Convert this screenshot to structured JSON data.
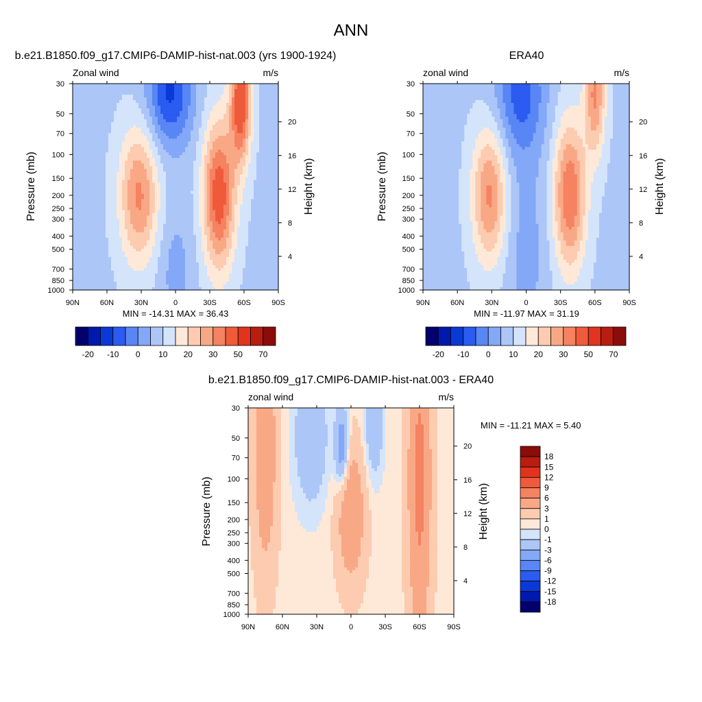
{
  "page_title": "ANN",
  "colors": {
    "scale_abs": [
      "#03006e",
      "#0019ad",
      "#0a3ad6",
      "#2b5bf0",
      "#5886f5",
      "#82a8f7",
      "#acc6f8",
      "#d4e4fb",
      "#fee9d8",
      "#fccbb0",
      "#f9a886",
      "#f58260",
      "#ef5a3a",
      "#e1331d",
      "#b81d10",
      "#8a0d0a"
    ],
    "scale_diff": [
      "#03006e",
      "#0019ad",
      "#0a3ad6",
      "#2b5bf0",
      "#5886f5",
      "#82a8f7",
      "#acc6f8",
      "#d4e4fb",
      "#fee9d8",
      "#fccbb0",
      "#f9a886",
      "#f58260",
      "#ef5a3a",
      "#e1331d",
      "#b81d10",
      "#8a0d0a"
    ],
    "white": "#ffffff"
  },
  "panels": {
    "model": {
      "title": "b.e21.B1850.f09_g17.CMIP6-DAMIP-hist-nat.003 (yrs 1900-1924)",
      "left_label": "Zonal wind",
      "right_label": "m/s",
      "ylabel": "Pressure (mb)",
      "ylabel_right": "Height (km)",
      "minmax": "MIN = -14.31  MAX =  36.43"
    },
    "obs": {
      "title": "ERA40",
      "left_label": "zonal wind",
      "right_label": "m/s",
      "ylabel": "Pressure (mb)",
      "ylabel_right": "Height (km)",
      "minmax": "MIN = -11.97  MAX =  31.19"
    },
    "diff": {
      "title": "b.e21.B1850.f09_g17.CMIP6-DAMIP-hist-nat.003 - ERA40",
      "left_label": "zonal wind",
      "right_label": "m/s",
      "ylabel": "Pressure (mb)",
      "ylabel_right": "Height (km)",
      "minmax": "MIN = -11.21  MAX =   5.40"
    }
  },
  "chart_data": [
    {
      "type": "heatmap",
      "panel": "model",
      "x_ticks": [
        "90N",
        "60N",
        "30N",
        "0",
        "30S",
        "60S",
        "90S"
      ],
      "x_values": [
        90,
        60,
        30,
        0,
        -30,
        -60,
        -90
      ],
      "y_ticks": [
        "30",
        "50",
        "70",
        "100",
        "150",
        "200",
        "250",
        "300",
        "400",
        "500",
        "700",
        "850",
        "1000"
      ],
      "y_values": [
        30,
        50,
        70,
        100,
        150,
        200,
        250,
        300,
        400,
        500,
        700,
        850,
        1000
      ],
      "y_right_ticks": [
        "20",
        "16",
        "12",
        "8",
        "4"
      ],
      "y_right_values": [
        20,
        16,
        12,
        8,
        4
      ],
      "y_scale": "log",
      "colorbar_labels": [
        "-20",
        "-10",
        "0",
        "10",
        "20",
        "30",
        "50",
        "70"
      ],
      "jets": [
        {
          "lat": 32,
          "p": 200,
          "amp": 22,
          "wlat": 17,
          "wlog": 0.5
        },
        {
          "lat": -38,
          "p": 200,
          "amp": 30,
          "wlat": 14,
          "wlog": 0.55
        },
        {
          "lat": -57,
          "p": 40,
          "amp": 32,
          "wlat": 9,
          "wlog": 0.45
        }
      ],
      "easterlies": [
        {
          "lat": 5,
          "p": 35,
          "amp": -20,
          "wlat": 20,
          "wlog": 0.4
        },
        {
          "lat": 0,
          "p": 700,
          "amp": -6,
          "wlat": 15,
          "wlog": 0.45
        }
      ],
      "background": 4
    },
    {
      "type": "heatmap",
      "panel": "obs",
      "x_ticks": [
        "90N",
        "60N",
        "30N",
        "0",
        "30S",
        "60S",
        "90S"
      ],
      "x_values": [
        90,
        60,
        30,
        0,
        -30,
        -60,
        -90
      ],
      "y_ticks": [
        "30",
        "50",
        "70",
        "100",
        "150",
        "200",
        "250",
        "300",
        "400",
        "500",
        "700",
        "850",
        "1000"
      ],
      "y_values": [
        30,
        50,
        70,
        100,
        150,
        200,
        250,
        300,
        400,
        500,
        700,
        850,
        1000
      ],
      "y_right_ticks": [
        "20",
        "16",
        "12",
        "8",
        "4"
      ],
      "y_right_values": [
        20,
        16,
        12,
        8,
        4
      ],
      "y_scale": "log",
      "colorbar_labels": [
        "-20",
        "-10",
        "0",
        "10",
        "20",
        "30",
        "50",
        "70"
      ],
      "jets": [
        {
          "lat": 32,
          "p": 200,
          "amp": 22,
          "wlat": 15,
          "wlog": 0.5
        },
        {
          "lat": -38,
          "p": 200,
          "amp": 26,
          "wlat": 14,
          "wlog": 0.55
        },
        {
          "lat": -60,
          "p": 35,
          "amp": 22,
          "wlat": 9,
          "wlog": 0.45
        }
      ],
      "easterlies": [
        {
          "lat": 5,
          "p": 35,
          "amp": -16,
          "wlat": 22,
          "wlog": 0.45
        },
        {
          "lat": 0,
          "p": 500,
          "amp": -6,
          "wlat": 18,
          "wlog": 0.8
        }
      ],
      "background": 4
    },
    {
      "type": "heatmap",
      "panel": "diff",
      "x_ticks": [
        "90N",
        "60N",
        "30N",
        "0",
        "30S",
        "60S",
        "90S"
      ],
      "x_values": [
        90,
        60,
        30,
        0,
        -30,
        -60,
        -90
      ],
      "y_ticks": [
        "30",
        "50",
        "70",
        "100",
        "150",
        "200",
        "250",
        "300",
        "400",
        "500",
        "700",
        "850",
        "1000"
      ],
      "y_values": [
        30,
        50,
        70,
        100,
        150,
        200,
        250,
        300,
        400,
        500,
        700,
        850,
        1000
      ],
      "y_right_ticks": [
        "20",
        "16",
        "12",
        "8",
        "4"
      ],
      "y_right_values": [
        20,
        16,
        12,
        8,
        4
      ],
      "y_scale": "log",
      "colorbar_labels": [
        "18",
        "15",
        "12",
        "9",
        "6",
        "3",
        "1",
        "0",
        "-1",
        "-3",
        "-6",
        "-9",
        "-12",
        "-15",
        "-18"
      ],
      "jets": [
        {
          "lat": 75,
          "p": 60,
          "amp": 5,
          "wlat": 10,
          "wlog": 0.9
        },
        {
          "lat": 0,
          "p": 180,
          "amp": 5.4,
          "wlat": 12,
          "wlog": 0.5
        },
        {
          "lat": -60,
          "p": 100,
          "amp": 6.5,
          "wlat": 10,
          "wlog": 1.2
        }
      ],
      "easterlies": [
        {
          "lat": 35,
          "p": 50,
          "amp": -3.5,
          "wlat": 15,
          "wlog": 0.5
        },
        {
          "lat": 8,
          "p": 60,
          "amp": -6,
          "wlat": 6,
          "wlog": 0.3
        },
        {
          "lat": -20,
          "p": 40,
          "amp": -3.5,
          "wlat": 8,
          "wlog": 0.4
        }
      ],
      "background": 0.5
    }
  ]
}
